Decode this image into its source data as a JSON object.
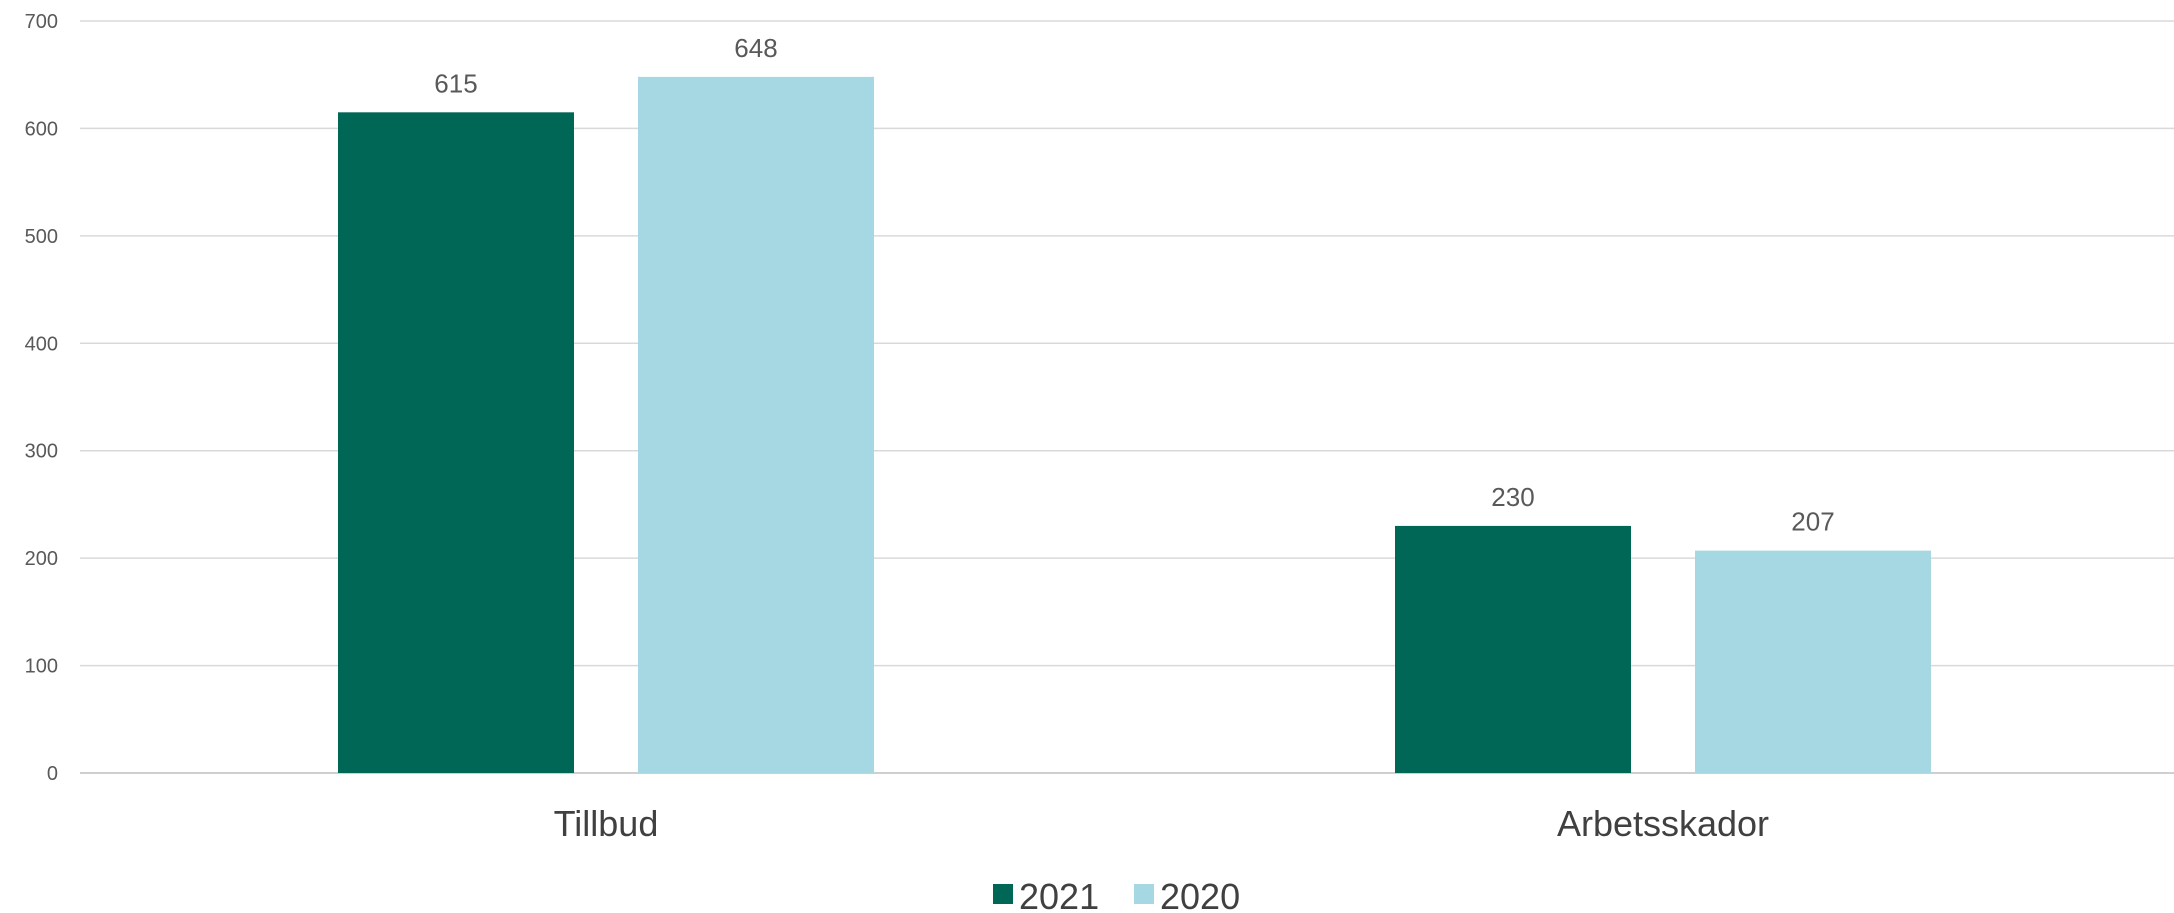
{
  "chart_data": {
    "type": "bar",
    "categories": [
      "Tillbud",
      "Arbetsskador"
    ],
    "series": [
      {
        "name": "2021",
        "values": [
          615,
          230
        ],
        "color": "#006655"
      },
      {
        "name": "2020",
        "values": [
          648,
          207
        ],
        "color": "#a5d8e3"
      }
    ],
    "ylim": [
      0,
      700
    ],
    "yticks": [
      "0",
      "100",
      "200",
      "300",
      "400",
      "500",
      "600",
      "700"
    ],
    "data_labels": [
      [
        "615",
        "230"
      ],
      [
        "648",
        "207"
      ]
    ],
    "grid": true,
    "legend_position": "bottom"
  }
}
